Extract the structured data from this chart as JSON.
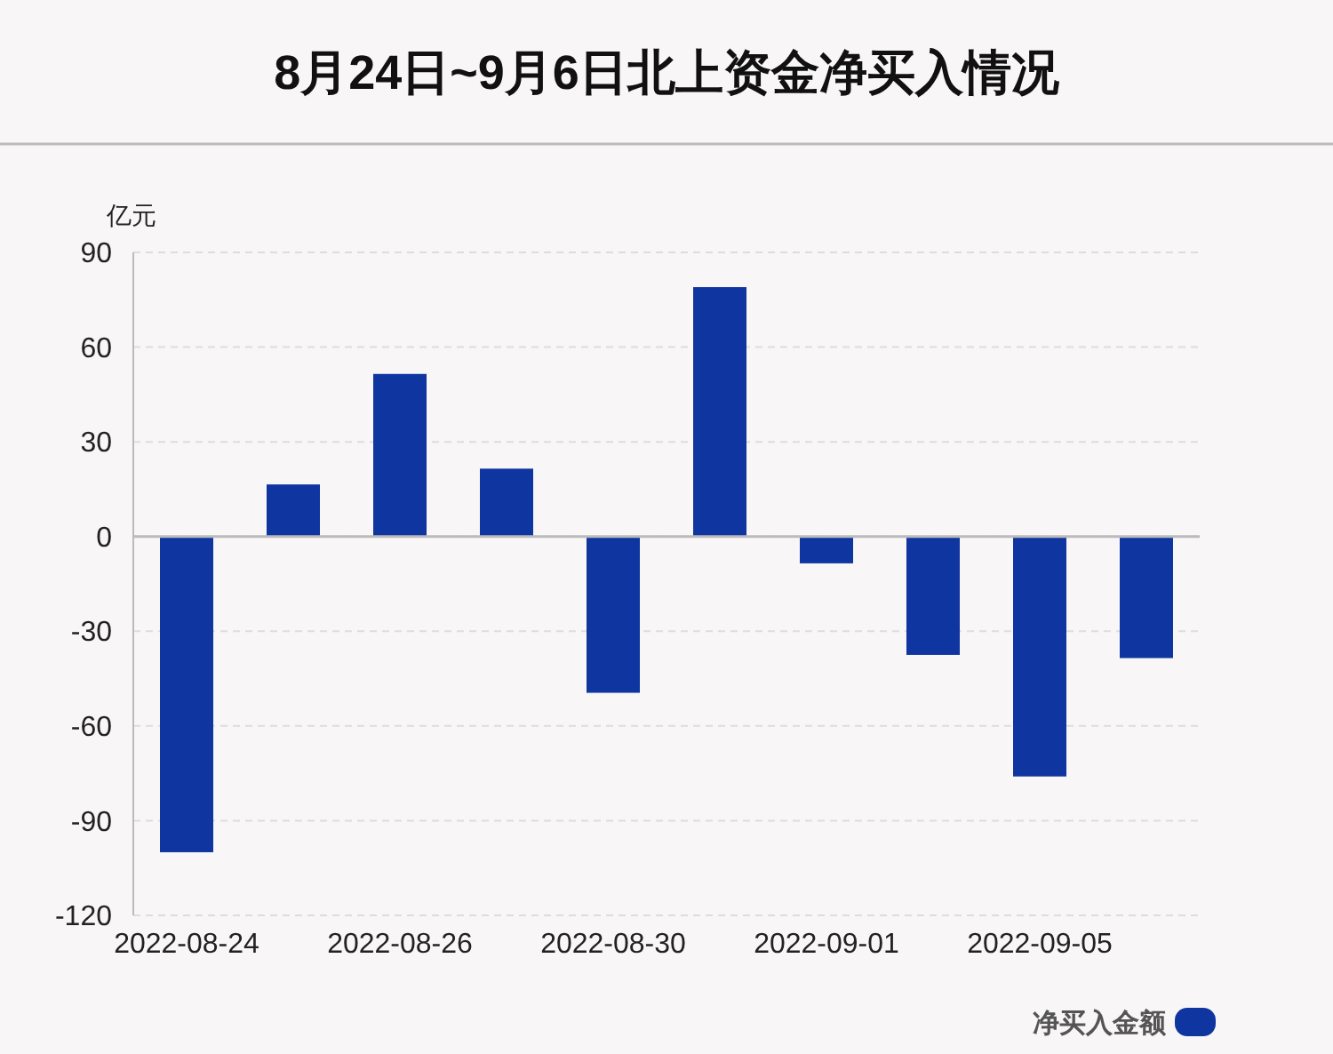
{
  "chart_data": {
    "type": "bar",
    "title": "8月24日~9月6日北上资金净买入情况",
    "ylabel": "亿元",
    "categories": [
      "2022-08-24",
      null,
      "2022-08-26",
      null,
      "2022-08-30",
      null,
      "2022-09-01",
      null,
      "2022-09-05",
      null
    ],
    "series": [
      {
        "name": "净买入金额",
        "color": "#0f35a0",
        "values": [
          -100,
          16.5,
          51.5,
          21.5,
          -49.5,
          79,
          -8.5,
          -37.5,
          -76,
          -38.5
        ]
      }
    ],
    "ylim": [
      -120,
      90
    ],
    "yticks": [
      -120,
      -90,
      -60,
      -30,
      0,
      30,
      60,
      90
    ],
    "grid": "y",
    "legend": "bottom right"
  }
}
